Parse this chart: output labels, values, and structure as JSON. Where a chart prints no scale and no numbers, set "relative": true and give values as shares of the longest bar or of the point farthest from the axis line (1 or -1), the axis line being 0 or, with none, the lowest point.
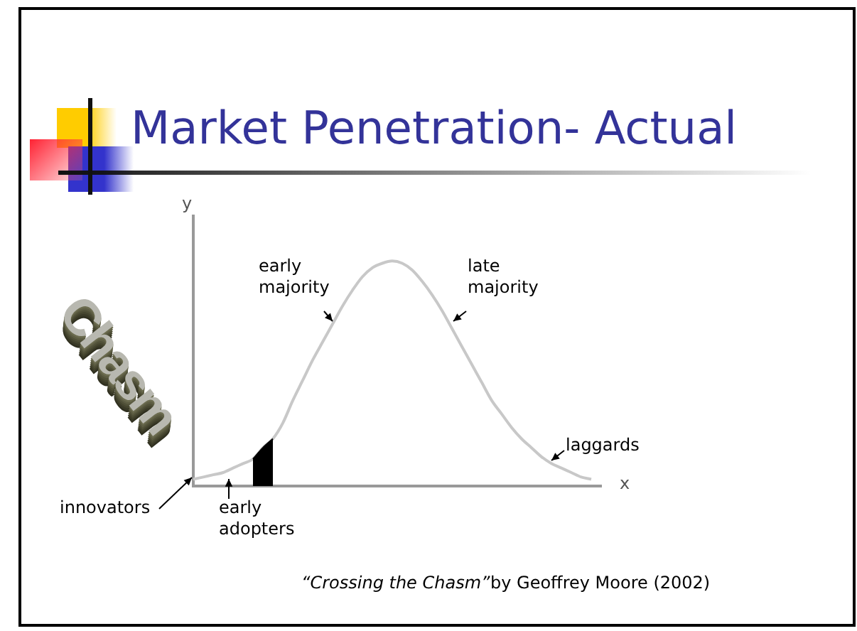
{
  "chart_data": {
    "type": "line",
    "title": "Market Penetration- Actual",
    "xlabel": "x",
    "ylabel": "y",
    "relative": true,
    "legend": false,
    "marker": "none",
    "categories": [
      null,
      null,
      null,
      null,
      null,
      null,
      null,
      null,
      null,
      null,
      null,
      null,
      null,
      null,
      null,
      null,
      null,
      null,
      null,
      null,
      null,
      null,
      null,
      null,
      null,
      null,
      null,
      null,
      null,
      null,
      null,
      null,
      null,
      null,
      null,
      null,
      null,
      null,
      null,
      null,
      null,
      null
    ],
    "series": [
      {
        "type": "line",
        "color": "#c8c8c8",
        "values": [
          0.03,
          0.04,
          0.05,
          0.06,
          0.08,
          0.1,
          0.12,
          0.17,
          0.21,
          0.28,
          0.38,
          0.47,
          0.56,
          0.64,
          0.72,
          0.8,
          0.87,
          0.93,
          0.97,
          0.99,
          1,
          0.99,
          0.96,
          0.91,
          0.85,
          0.78,
          0.7,
          0.62,
          0.54,
          0.46,
          0.38,
          0.32,
          0.26,
          0.21,
          0.17,
          0.13,
          0.1,
          0.08,
          0.06,
          0.04,
          0.03,
          null
        ]
      },
      {
        "type": "area",
        "color": "#000000",
        "values": [
          null,
          null,
          null,
          null,
          null,
          null,
          0.12,
          0.17,
          0.21,
          null,
          null,
          null,
          null,
          null,
          null,
          null,
          null,
          null,
          null,
          null,
          null,
          null,
          null,
          null,
          null,
          null,
          null,
          null,
          null,
          null,
          null,
          null,
          null,
          null,
          null,
          null,
          null,
          null,
          null,
          null,
          null,
          null
        ]
      }
    ],
    "annotations": [
      "Chasm",
      "early majority",
      "late majority",
      "laggards",
      "innovators",
      "early adopters",
      "“Crossing the Chasm”",
      "by Geoffrey Moore (2002)"
    ]
  }
}
